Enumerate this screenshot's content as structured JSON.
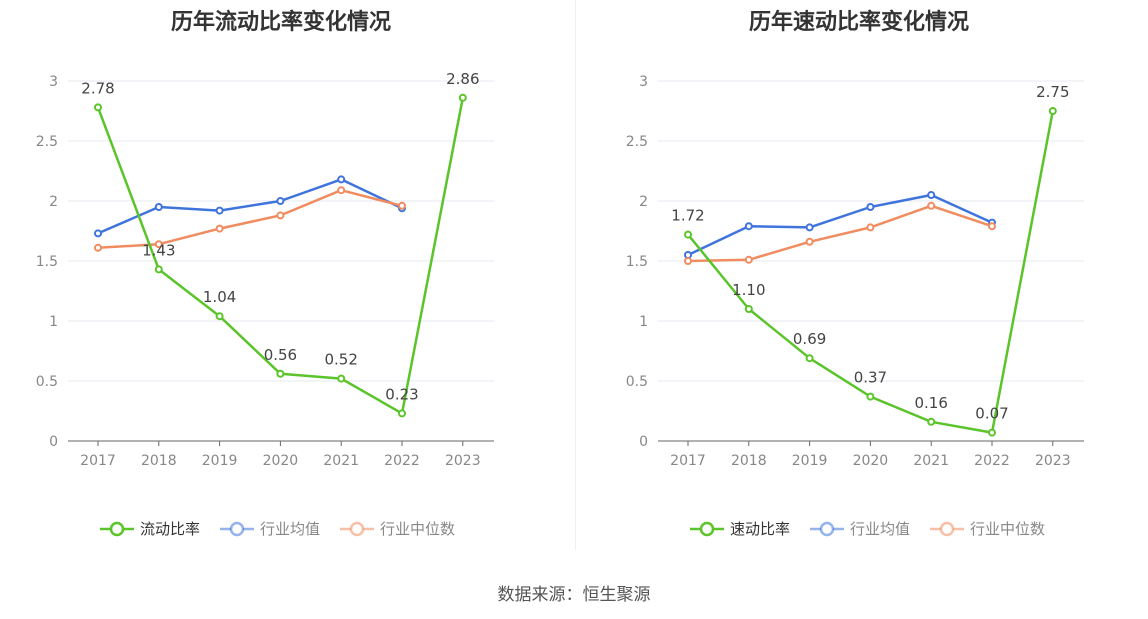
{
  "source_text": "数据来源：恒生聚源",
  "chart_data": [
    {
      "type": "line",
      "title": "历年流动比率变化情况",
      "categories": [
        "2017",
        "2018",
        "2019",
        "2020",
        "2021",
        "2022",
        "2023"
      ],
      "ylim": [
        0,
        3
      ],
      "yticks": [
        "0",
        "0.5",
        "1",
        "1.5",
        "2",
        "2.5",
        "3"
      ],
      "grid": true,
      "legend_position": "bottom",
      "series": [
        {
          "name": "流动比率",
          "color": "#5ac42a",
          "values": [
            2.78,
            1.43,
            1.04,
            0.56,
            0.52,
            0.23,
            2.86
          ],
          "labels": [
            "2.78",
            "1.43",
            "1.04",
            "0.56",
            "0.52",
            "0.23",
            "2.86"
          ]
        },
        {
          "name": "行业均值",
          "color": "#3f74dd",
          "values": [
            1.73,
            1.95,
            1.92,
            2.0,
            2.18,
            1.94,
            null
          ]
        },
        {
          "name": "行业中位数",
          "color": "#f08c60",
          "values": [
            1.61,
            1.64,
            1.77,
            1.88,
            2.09,
            1.96,
            null
          ]
        }
      ]
    },
    {
      "type": "line",
      "title": "历年速动比率变化情况",
      "categories": [
        "2017",
        "2018",
        "2019",
        "2020",
        "2021",
        "2022",
        "2023"
      ],
      "ylim": [
        0,
        3
      ],
      "yticks": [
        "0",
        "0.5",
        "1",
        "1.5",
        "2",
        "2.5",
        "3"
      ],
      "grid": true,
      "legend_position": "bottom",
      "series": [
        {
          "name": "速动比率",
          "color": "#5ac42a",
          "values": [
            1.72,
            1.1,
            0.69,
            0.37,
            0.16,
            0.07,
            2.75
          ],
          "labels": [
            "1.72",
            "1.10",
            "0.69",
            "0.37",
            "0.16",
            "0.07",
            "2.75"
          ]
        },
        {
          "name": "行业均值",
          "color": "#3f74dd",
          "values": [
            1.55,
            1.79,
            1.78,
            1.95,
            2.05,
            1.82,
            null
          ]
        },
        {
          "name": "行业中位数",
          "color": "#f08c60",
          "values": [
            1.5,
            1.51,
            1.66,
            1.78,
            1.96,
            1.79,
            null
          ]
        }
      ]
    }
  ]
}
